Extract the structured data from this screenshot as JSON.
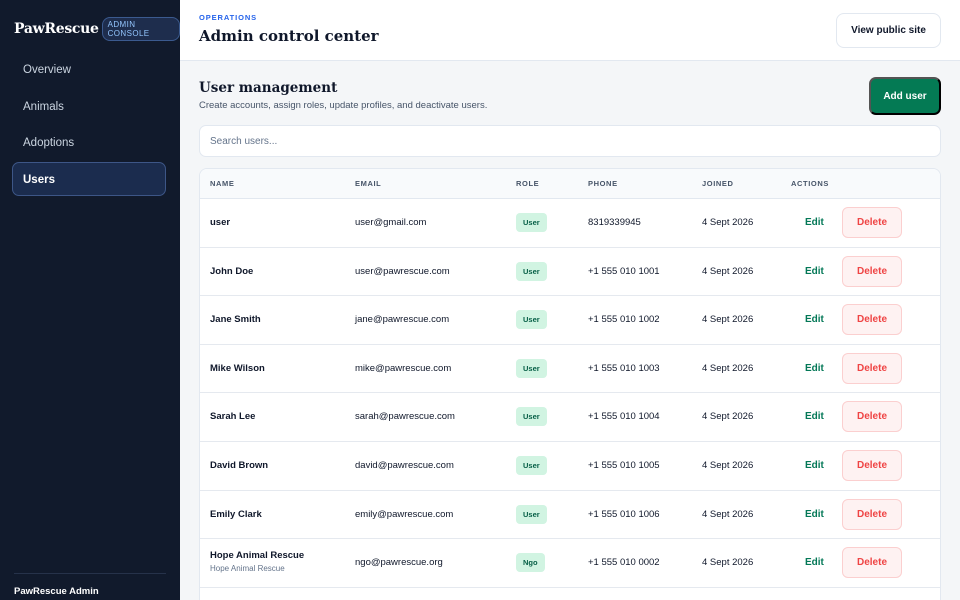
{
  "sidebar": {
    "brand": "PawRescue",
    "badge": "ADMIN CONSOLE",
    "items": [
      {
        "label": "Overview"
      },
      {
        "label": "Animals"
      },
      {
        "label": "Adoptions"
      },
      {
        "label": "Users",
        "active": true
      }
    ],
    "footer": "PawRescue Admin"
  },
  "header": {
    "eyebrow": "OPERATIONS",
    "title": "Admin control center",
    "view_site_label": "View public site"
  },
  "section": {
    "title": "User management",
    "subtitle": "Create accounts, assign roles, update profiles, and deactivate users.",
    "add_label": "Add user"
  },
  "search": {
    "placeholder": "Search users...",
    "value": ""
  },
  "table": {
    "columns": [
      "NAME",
      "EMAIL",
      "ROLE",
      "PHONE",
      "JOINED",
      "ACTIONS"
    ],
    "edit_label": "Edit",
    "delete_label": "Delete",
    "rows": [
      {
        "name": "user",
        "sub": "",
        "email": "user@gmail.com",
        "role": "User",
        "phone": "8319339945",
        "joined": "4 Sept 2026"
      },
      {
        "name": "John Doe",
        "sub": "",
        "email": "user@pawrescue.com",
        "role": "User",
        "phone": "+1 555 010 1001",
        "joined": "4 Sept 2026"
      },
      {
        "name": "Jane Smith",
        "sub": "",
        "email": "jane@pawrescue.com",
        "role": "User",
        "phone": "+1 555 010 1002",
        "joined": "4 Sept 2026"
      },
      {
        "name": "Mike Wilson",
        "sub": "",
        "email": "mike@pawrescue.com",
        "role": "User",
        "phone": "+1 555 010 1003",
        "joined": "4 Sept 2026"
      },
      {
        "name": "Sarah Lee",
        "sub": "",
        "email": "sarah@pawrescue.com",
        "role": "User",
        "phone": "+1 555 010 1004",
        "joined": "4 Sept 2026"
      },
      {
        "name": "David Brown",
        "sub": "",
        "email": "david@pawrescue.com",
        "role": "User",
        "phone": "+1 555 010 1005",
        "joined": "4 Sept 2026"
      },
      {
        "name": "Emily Clark",
        "sub": "",
        "email": "emily@pawrescue.com",
        "role": "User",
        "phone": "+1 555 010 1006",
        "joined": "4 Sept 2026"
      },
      {
        "name": "Hope Animal Rescue",
        "sub": "Hope Animal Rescue",
        "email": "ngo@pawrescue.org",
        "role": "Ngo",
        "phone": "+1 555 010 0002",
        "joined": "4 Sept 2026"
      }
    ]
  },
  "colors": {
    "sidebar_bg": "#111a2c",
    "accent_green": "#047a54",
    "accent_blue": "#2563eb",
    "danger": "#ef4444"
  }
}
